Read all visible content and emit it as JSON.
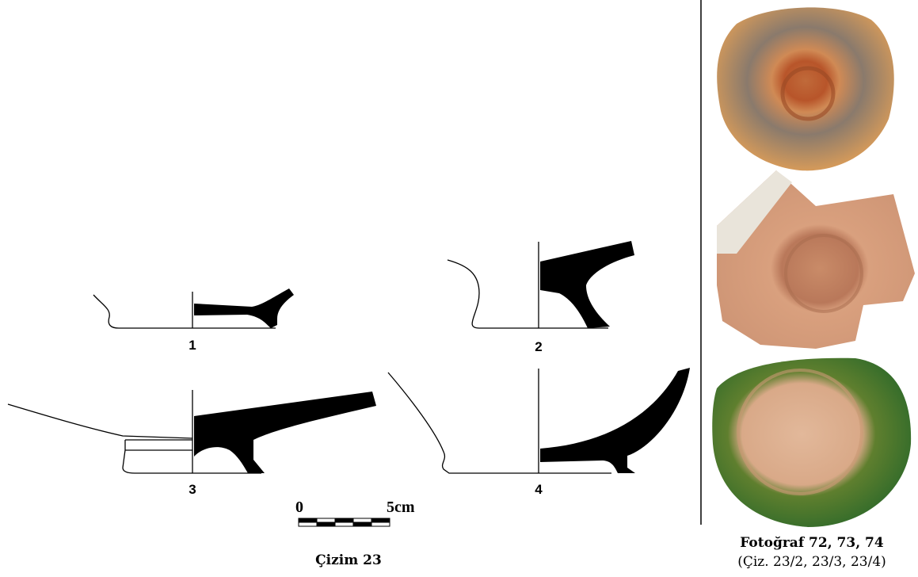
{
  "drawing_labels": [
    "1",
    "2",
    "3",
    "4"
  ],
  "scale": {
    "start": "0",
    "end": "5cm"
  },
  "drawing_caption": "Çizim 23",
  "photo_caption": {
    "title": "Fotoğraf 72, 73, 74",
    "reference": "(Çiz. 23/2, 23/3, 23/4)"
  }
}
